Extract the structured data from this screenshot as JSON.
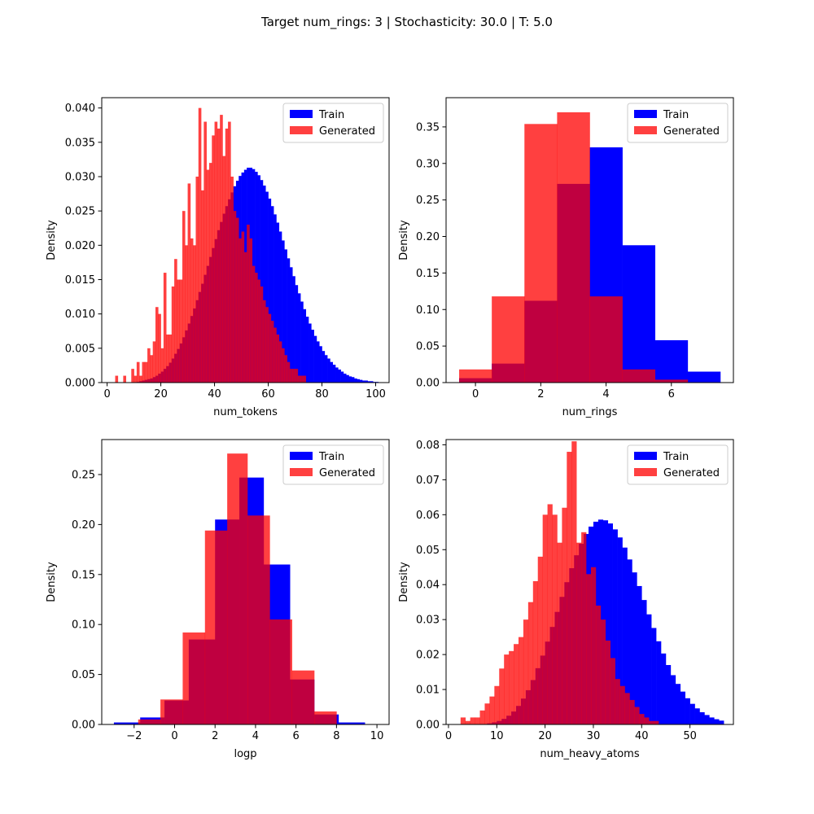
{
  "title": "Target num_rings: 3 | Stochasticity: 30.0 | T: 5.0",
  "colors": {
    "train": "#0000ff",
    "generated": "#ff0000",
    "generated_alpha": 0.75
  },
  "chart_data": [
    {
      "type": "histogram",
      "xlabel": "num_tokens",
      "ylabel": "Density",
      "xlim": [
        -2,
        105
      ],
      "ylim": [
        0,
        0.0415
      ],
      "xticks": [
        0,
        20,
        40,
        60,
        80,
        100
      ],
      "yticks": [
        0.0,
        0.005,
        0.01,
        0.015,
        0.02,
        0.025,
        0.03,
        0.035,
        0.04
      ],
      "ytick_labels": [
        "0.000",
        "0.005",
        "0.010",
        "0.015",
        "0.020",
        "0.025",
        "0.030",
        "0.035",
        "0.040"
      ],
      "legend": {
        "position": "top-right",
        "entries": [
          "Train",
          "Generated"
        ]
      },
      "series": [
        {
          "name": "Train",
          "bin_start": 1,
          "bin_width": 1,
          "values": [
            0,
            0,
            0,
            0,
            0,
            0,
            0,
            0,
            0,
            0,
            0.0001,
            0.0002,
            0.0003,
            0.0004,
            0.0005,
            0.0006,
            0.0008,
            0.001,
            0.0013,
            0.0016,
            0.002,
            0.0024,
            0.0029,
            0.0035,
            0.0042,
            0.0049,
            0.0057,
            0.0066,
            0.0076,
            0.0086,
            0.0097,
            0.0108,
            0.012,
            0.0132,
            0.0144,
            0.0157,
            0.017,
            0.0183,
            0.0196,
            0.0209,
            0.0222,
            0.0234,
            0.0246,
            0.0257,
            0.0267,
            0.0277,
            0.0286,
            0.0294,
            0.0301,
            0.0306,
            0.031,
            0.0313,
            0.0313,
            0.0311,
            0.0307,
            0.0302,
            0.0295,
            0.0287,
            0.0278,
            0.0268,
            0.0257,
            0.0245,
            0.0233,
            0.022,
            0.0207,
            0.0194,
            0.0181,
            0.0168,
            0.0155,
            0.0142,
            0.013,
            0.0118,
            0.0107,
            0.0096,
            0.0086,
            0.0077,
            0.0068,
            0.006,
            0.0053,
            0.0046,
            0.004,
            0.0035,
            0.003,
            0.0026,
            0.0022,
            0.0019,
            0.0016,
            0.0013,
            0.0011,
            0.0009,
            0.0008,
            0.0006,
            0.0005,
            0.0004,
            0.0003,
            0.0003,
            0.0002,
            0.0002,
            0.0001,
            0.0001
          ]
        },
        {
          "name": "Generated",
          "bin_start": 1,
          "bin_width": 1,
          "values": [
            0,
            0,
            0.001,
            0,
            0,
            0.001,
            0,
            0,
            0.002,
            0.001,
            0.003,
            0.001,
            0.003,
            0.003,
            0.005,
            0.004,
            0.006,
            0.011,
            0.01,
            0.005,
            0.016,
            0.007,
            0.007,
            0.014,
            0.018,
            0.015,
            0.015,
            0.025,
            0.02,
            0.029,
            0.021,
            0.02,
            0.03,
            0.04,
            0.028,
            0.038,
            0.031,
            0.032,
            0.036,
            0.038,
            0.037,
            0.039,
            0.033,
            0.037,
            0.038,
            0.03,
            0.025,
            0.024,
            0.021,
            0.022,
            0.019,
            0.023,
            0.021,
            0.017,
            0.016,
            0.015,
            0.014,
            0.012,
            0.011,
            0.01,
            0.009,
            0.008,
            0.007,
            0.006,
            0.005,
            0.004,
            0.003,
            0.002,
            0.002,
            0.002,
            0.001,
            0.001,
            0.001,
            0,
            0,
            0,
            0,
            0,
            0,
            0,
            0,
            0,
            0,
            0,
            0,
            0,
            0,
            0,
            0,
            0,
            0,
            0,
            0,
            0,
            0,
            0,
            0,
            0,
            0,
            0
          ]
        }
      ]
    },
    {
      "type": "histogram",
      "xlabel": "num_rings",
      "ylabel": "Density",
      "xlim": [
        -0.9,
        7.9
      ],
      "ylim": [
        0,
        0.39
      ],
      "xticks": [
        0,
        2,
        4,
        6
      ],
      "yticks": [
        0.0,
        0.05,
        0.1,
        0.15,
        0.2,
        0.25,
        0.3,
        0.35
      ],
      "ytick_labels": [
        "0.00",
        "0.05",
        "0.10",
        "0.15",
        "0.20",
        "0.25",
        "0.30",
        "0.35"
      ],
      "legend": {
        "position": "top-right",
        "entries": [
          "Train",
          "Generated"
        ]
      },
      "series": [
        {
          "name": "Train",
          "bin_start": -0.5,
          "bin_width": 1,
          "values": [
            0.006,
            0.026,
            0.112,
            0.272,
            0.322,
            0.188,
            0.058,
            0.015
          ]
        },
        {
          "name": "Generated",
          "bin_start": -0.5,
          "bin_width": 1,
          "values": [
            0.018,
            0.118,
            0.354,
            0.37,
            0.118,
            0.018,
            0.004,
            0
          ]
        }
      ]
    },
    {
      "type": "histogram",
      "xlabel": "logp",
      "ylabel": "Density",
      "xlim": [
        -3.6,
        10.6
      ],
      "ylim": [
        0,
        0.285
      ],
      "xticks": [
        -2,
        0,
        2,
        4,
        6,
        8,
        10
      ],
      "yticks": [
        0.0,
        0.05,
        0.1,
        0.15,
        0.2,
        0.25
      ],
      "ytick_labels": [
        "0.00",
        "0.05",
        "0.10",
        "0.15",
        "0.20",
        "0.25"
      ],
      "legend": {
        "position": "top-right",
        "entries": [
          "Train",
          "Generated"
        ]
      },
      "series": [
        {
          "name": "Train",
          "bins": [
            -3.0,
            -1.7,
            -0.5,
            0.7,
            2.0,
            3.2,
            4.4,
            5.7,
            6.9,
            8.1,
            9.4
          ],
          "values": [
            0.002,
            0.007,
            0.024,
            0.085,
            0.205,
            0.247,
            0.16,
            0.045,
            0.01,
            0.002
          ]
        },
        {
          "name": "Generated",
          "bins": [
            -1.8,
            -0.7,
            0.4,
            1.5,
            2.6,
            3.6,
            4.7,
            5.8,
            6.9,
            8.0
          ],
          "values": [
            0.005,
            0.025,
            0.092,
            0.194,
            0.271,
            0.209,
            0.105,
            0.054,
            0.013
          ]
        }
      ]
    },
    {
      "type": "histogram",
      "xlabel": "num_heavy_atoms",
      "ylabel": "Density",
      "xlim": [
        -0.5,
        59
      ],
      "ylim": [
        0,
        0.0815
      ],
      "xticks": [
        0,
        10,
        20,
        30,
        40,
        50
      ],
      "yticks": [
        0.0,
        0.01,
        0.02,
        0.03,
        0.04,
        0.05,
        0.06,
        0.07,
        0.08
      ],
      "ytick_labels": [
        "0.00",
        "0.01",
        "0.02",
        "0.03",
        "0.04",
        "0.05",
        "0.06",
        "0.07",
        "0.08"
      ],
      "legend": {
        "position": "top-right",
        "entries": [
          "Train",
          "Generated"
        ]
      },
      "series": [
        {
          "name": "Train",
          "bin_start": 8,
          "bin_width": 1,
          "values": [
            0.0003,
            0.0006,
            0.001,
            0.0016,
            0.0025,
            0.0037,
            0.0053,
            0.0074,
            0.0098,
            0.0127,
            0.0161,
            0.0197,
            0.0237,
            0.0279,
            0.0322,
            0.0365,
            0.0407,
            0.0447,
            0.0484,
            0.0517,
            0.0545,
            0.0566,
            0.058,
            0.0586,
            0.0584,
            0.0575,
            0.0558,
            0.0535,
            0.0506,
            0.0472,
            0.0435,
            0.0396,
            0.0356,
            0.0315,
            0.0276,
            0.0238,
            0.0203,
            0.017,
            0.0141,
            0.0116,
            0.0094,
            0.0075,
            0.0059,
            0.0046,
            0.0035,
            0.0027,
            0.002,
            0.0015,
            0.0011
          ]
        },
        {
          "name": "Generated",
          "bin_start": 2.5,
          "bin_width": 1,
          "values": [
            0.002,
            0.001,
            0.002,
            0.002,
            0.004,
            0.006,
            0.008,
            0.011,
            0.016,
            0.02,
            0.021,
            0.023,
            0.025,
            0.03,
            0.035,
            0.041,
            0.048,
            0.06,
            0.063,
            0.06,
            0.052,
            0.062,
            0.078,
            0.081,
            0.052,
            0.055,
            0.043,
            0.045,
            0.034,
            0.03,
            0.024,
            0.019,
            0.013,
            0.011,
            0.009,
            0.007,
            0.005,
            0.003,
            0.002,
            0.001,
            0.001,
            0,
            0,
            0
          ]
        }
      ]
    }
  ]
}
